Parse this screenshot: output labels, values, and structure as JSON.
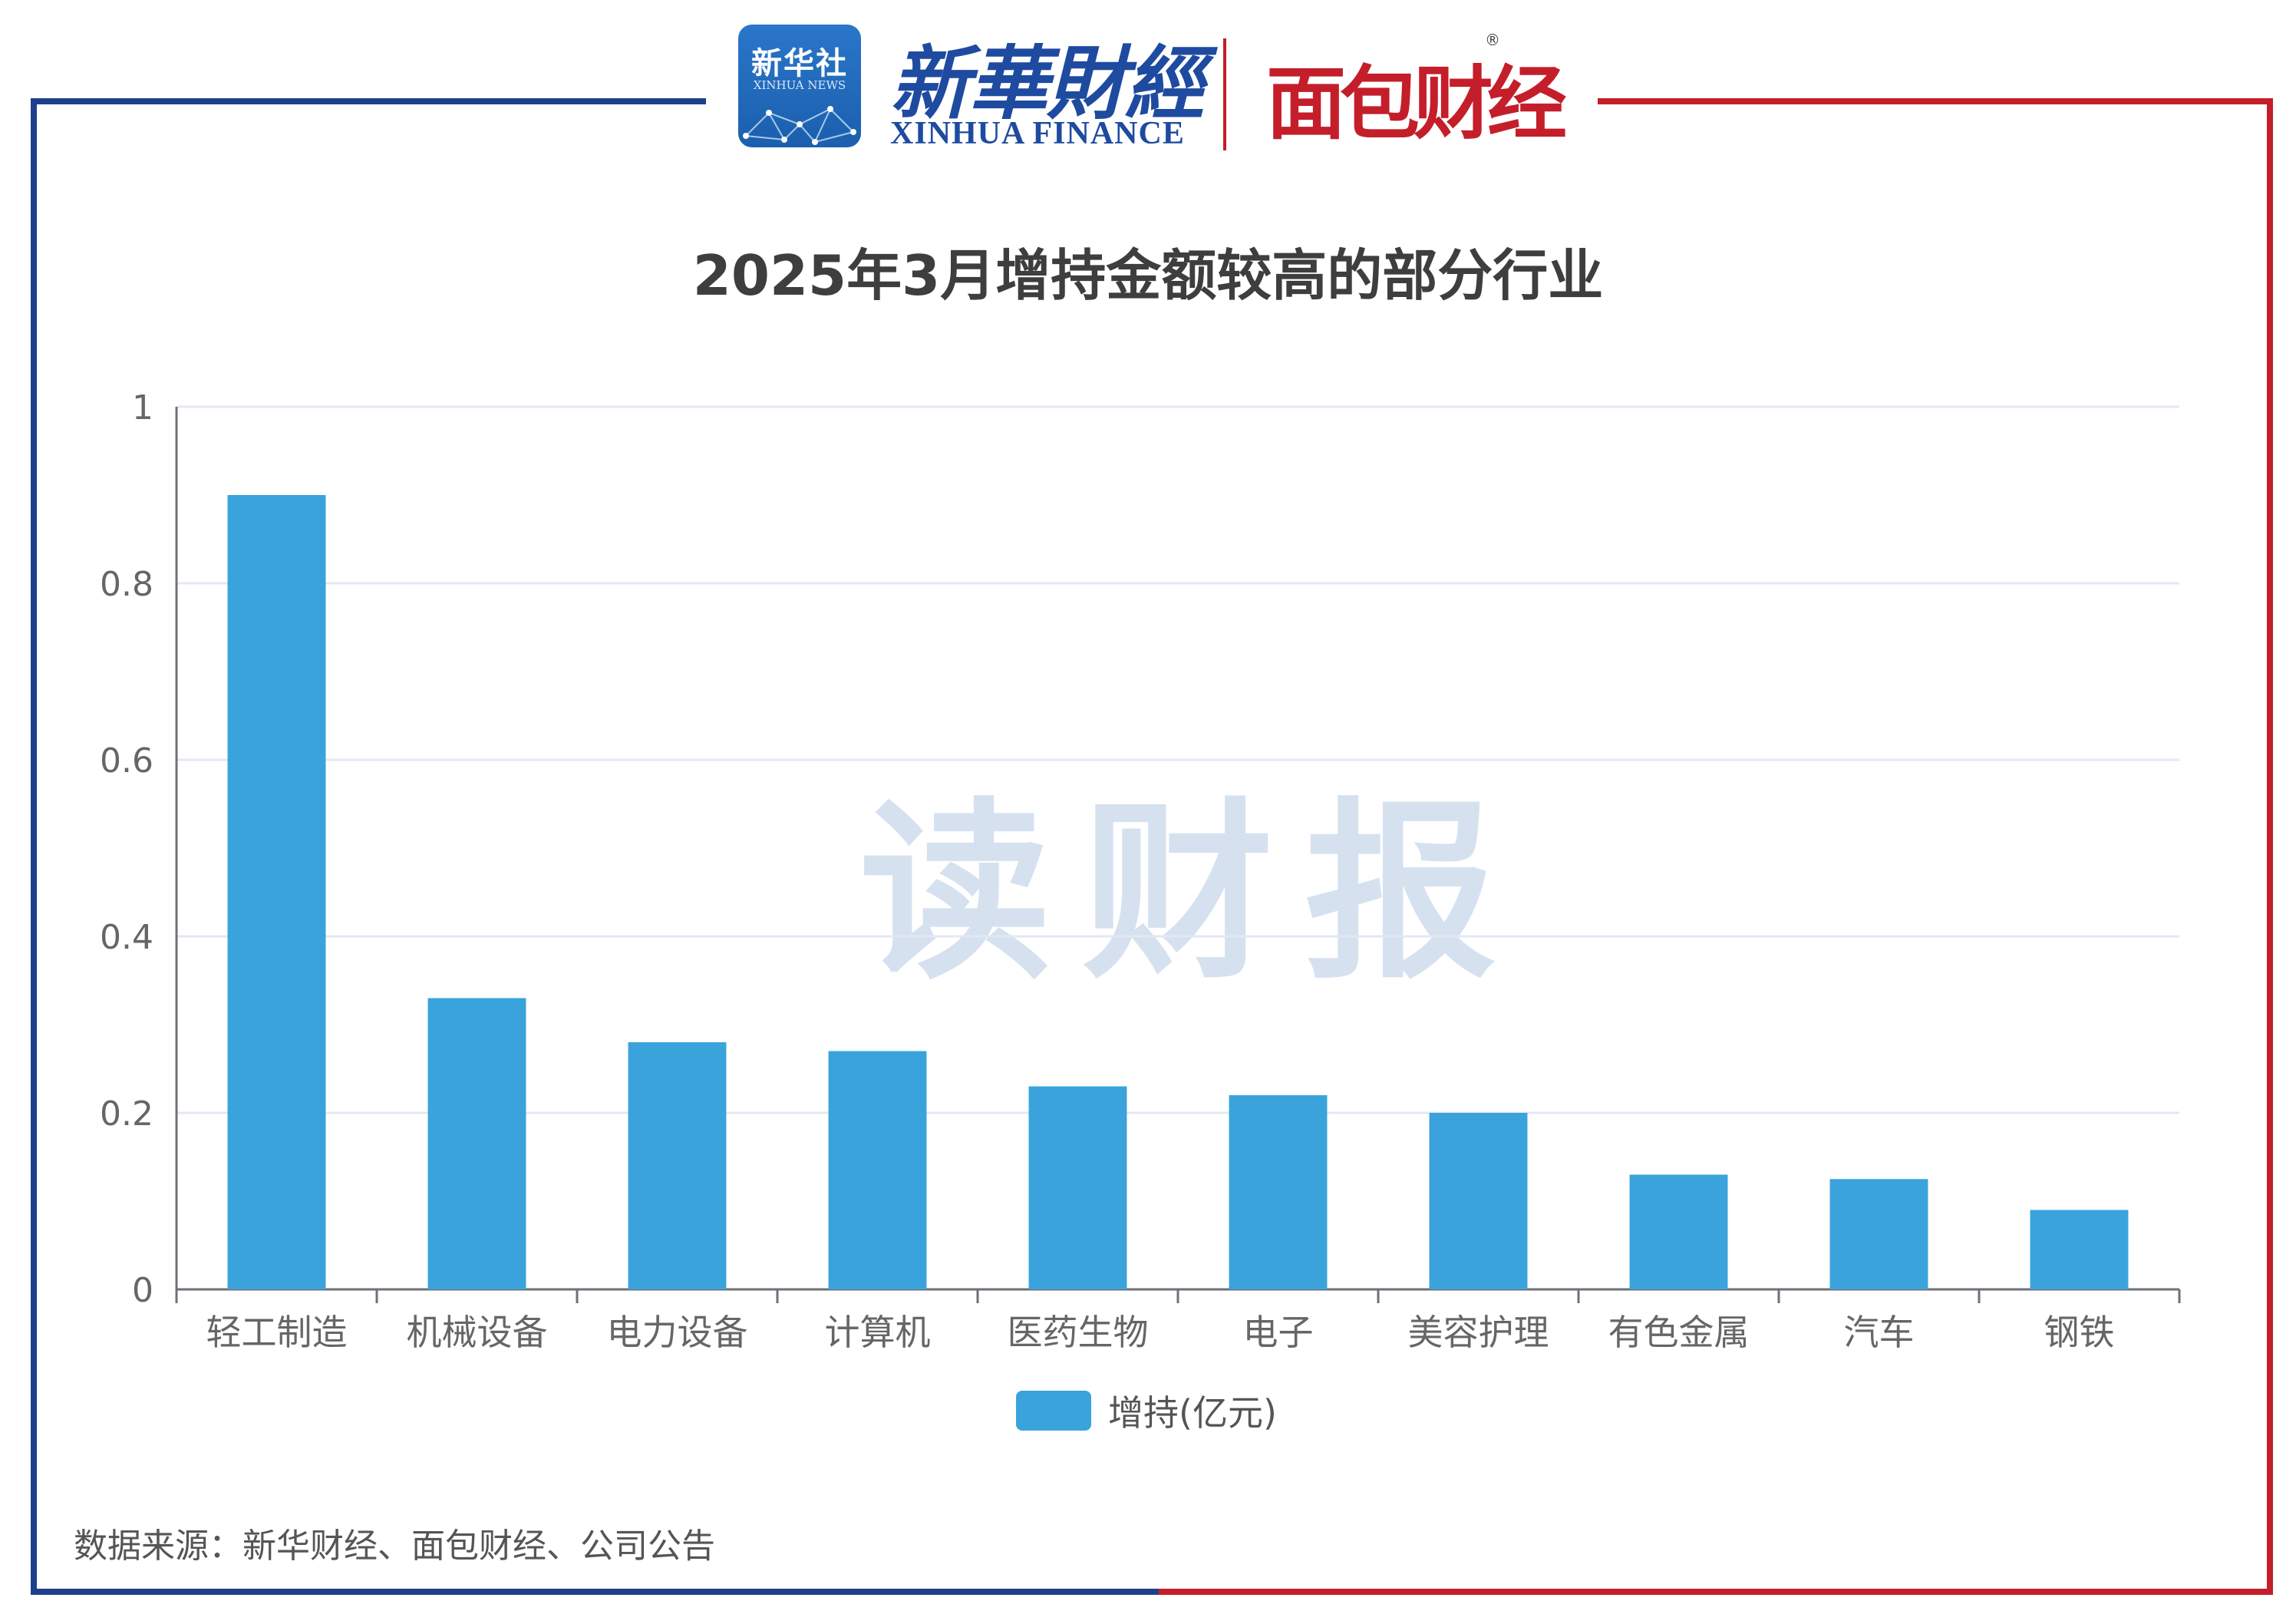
{
  "header": {
    "xinhua_news_cn": "新华社",
    "xinhua_news_en": "XINHUA NEWS",
    "xinhua_finance_cn": "新華財經",
    "xinhua_finance_en": "XINHUA FINANCE",
    "mianbao_cn": "面包财经"
  },
  "watermark": "读财报",
  "chart_data": {
    "type": "bar",
    "title": "2025年3月增持金额较高的部分行业",
    "categories": [
      "轻工制造",
      "机械设备",
      "电力设备",
      "计算机",
      "医药生物",
      "电子",
      "美容护理",
      "有色金属",
      "汽车",
      "钢铁"
    ],
    "series": [
      {
        "name": "增持(亿元)",
        "values": [
          0.9,
          0.33,
          0.28,
          0.27,
          0.23,
          0.22,
          0.2,
          0.13,
          0.125,
          0.09
        ]
      }
    ],
    "ylim": [
      0,
      1
    ],
    "yticks": [
      "0",
      "0.2",
      "0.4",
      "0.6",
      "0.8",
      "1"
    ],
    "xlabel": "",
    "ylabel": "",
    "grid": true,
    "legend": "bottom-center",
    "color": "#3aa3dc"
  },
  "source": "数据来源：新华财经、面包财经、公司公告"
}
